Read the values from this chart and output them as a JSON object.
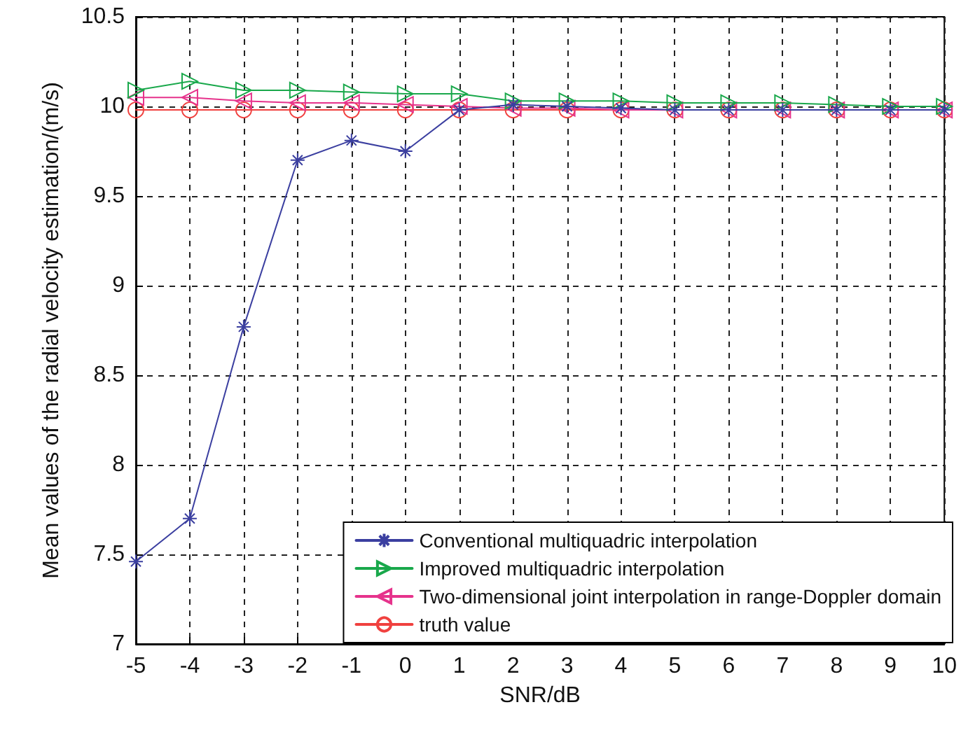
{
  "chart_data": {
    "type": "line",
    "xlabel": "SNR/dB",
    "ylabel": "Mean values of the radial velocity estimation/(m/s)",
    "x": [
      -5,
      -4,
      -3,
      -2,
      -1,
      0,
      1,
      2,
      3,
      4,
      5,
      6,
      7,
      8,
      9,
      10
    ],
    "series": [
      {
        "name": "Conventional multiquadric interpolation",
        "color": "#3b3fa0",
        "marker": "cross",
        "values": [
          7.46,
          7.7,
          8.77,
          9.7,
          9.81,
          9.75,
          9.98,
          10.01,
          10.0,
          9.99,
          9.98,
          9.98,
          9.98,
          9.98,
          9.98,
          9.98
        ]
      },
      {
        "name": "Improved multiquadric interpolation",
        "color": "#19a84b",
        "marker": "triangle",
        "values": [
          10.09,
          10.14,
          10.09,
          10.09,
          10.08,
          10.07,
          10.07,
          10.03,
          10.03,
          10.03,
          10.02,
          10.02,
          10.02,
          10.01,
          10.0,
          10.0
        ]
      },
      {
        "name": "Two-dimensional joint interpolation in range-Doppler domain",
        "color": "#e6338c",
        "marker": "triangle",
        "values": [
          10.05,
          10.05,
          10.03,
          10.02,
          10.02,
          10.01,
          10.0,
          9.99,
          9.99,
          9.98,
          9.98,
          9.98,
          9.98,
          9.98,
          9.98,
          9.98
        ]
      },
      {
        "name": "truth value",
        "color": "#f0413f",
        "marker": "circle",
        "values": [
          9.98,
          9.98,
          9.98,
          9.98,
          9.98,
          9.98,
          9.98,
          9.98,
          9.98,
          9.98,
          9.98,
          9.98,
          9.98,
          9.98,
          9.98,
          9.98
        ]
      }
    ],
    "xlim": [
      -5,
      10
    ],
    "xticks": [
      -5,
      -4,
      -3,
      -2,
      -1,
      0,
      1,
      2,
      3,
      4,
      5,
      6,
      7,
      8,
      9,
      10
    ],
    "ylim": [
      7,
      10.5
    ],
    "yticks": [
      7,
      7.5,
      8,
      8.5,
      9,
      9.5,
      10,
      10.5
    ],
    "grid": true,
    "legend": "bottom right",
    "line_style": "solid"
  }
}
